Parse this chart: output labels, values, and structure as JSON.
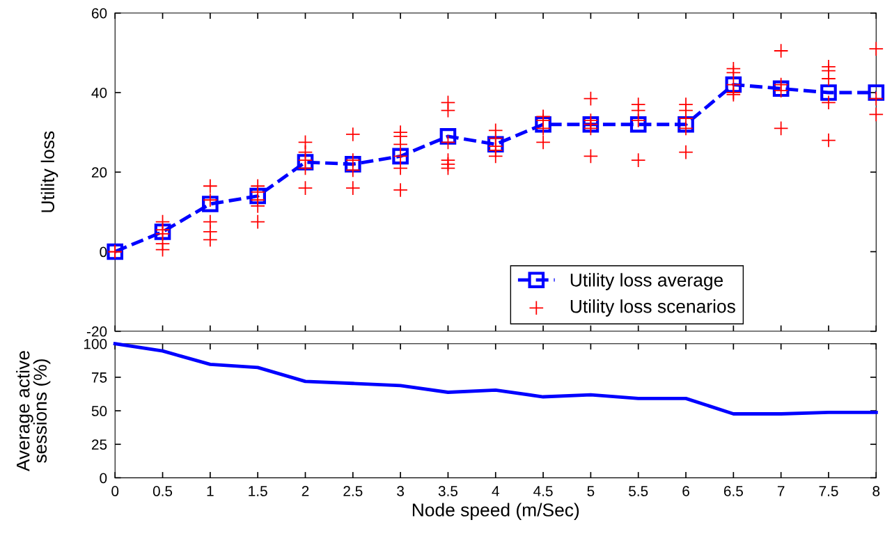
{
  "chart_data": [
    {
      "type": "line",
      "ylabel": "Utility loss",
      "xlim": [
        0,
        8
      ],
      "xticks": [
        0,
        0.5,
        1,
        1.5,
        2,
        2.5,
        3,
        3.5,
        4,
        4.5,
        5,
        5.5,
        6,
        6.5,
        7,
        7.5,
        8
      ],
      "ylim": [
        -20,
        60
      ],
      "yticks": [
        -20,
        0,
        20,
        40,
        60
      ],
      "tick_labels": "y",
      "legend": "bottom right",
      "grid": false,
      "series": [
        {
          "name": "Utility loss average",
          "type": "line",
          "color": "#0000ff",
          "marker": "square",
          "line_style": "dashed",
          "x": [
            0,
            0.5,
            1,
            1.5,
            2,
            2.5,
            3,
            3.5,
            4,
            4.5,
            5,
            5.5,
            6,
            6.5,
            7,
            7.5,
            8
          ],
          "values": [
            0,
            5,
            12,
            14,
            22.5,
            22,
            24,
            29,
            27,
            32,
            32,
            32,
            32,
            42,
            41,
            40,
            40
          ]
        },
        {
          "name": "Utility loss scenarios",
          "type": "scatter",
          "color": "#ff0000",
          "marker": "cross",
          "x": [
            0,
            0,
            0.5,
            0.5,
            0.5,
            0.5,
            0.5,
            1,
            1,
            1,
            1,
            1,
            1.5,
            1.5,
            1.5,
            1.5,
            1.5,
            2,
            2,
            2,
            2,
            2,
            2.5,
            2.5,
            2.5,
            2.5,
            3,
            3,
            3,
            3,
            3,
            3,
            3.5,
            3.5,
            3.5,
            3.5,
            3.5,
            3.5,
            4,
            4,
            4,
            4,
            4,
            4.5,
            4.5,
            4.5,
            4.5,
            5,
            5,
            5,
            5,
            5,
            5.5,
            5.5,
            5.5,
            5.5,
            6,
            6,
            6,
            6,
            6,
            6.5,
            6.5,
            6.5,
            6.5,
            6.5,
            7,
            7,
            7,
            7,
            7.5,
            7.5,
            7.5,
            7.5,
            7.5,
            8,
            8,
            8
          ],
          "values": [
            0,
            0,
            7.5,
            5.5,
            4.5,
            2,
            0.5,
            16.5,
            13,
            7.5,
            5,
            3,
            16.5,
            15,
            13,
            11.5,
            7.5,
            27.5,
            25,
            23,
            21,
            16,
            29.5,
            23,
            20.5,
            16,
            30,
            29,
            27,
            24,
            21,
            15.5,
            37.5,
            35.5,
            27.5,
            23,
            22,
            21,
            30.5,
            28.5,
            26.5,
            25.5,
            24,
            34,
            33,
            31,
            27.5,
            38.5,
            33,
            32,
            31,
            24,
            37,
            35.5,
            33,
            23,
            37,
            35.5,
            33.5,
            31,
            25,
            46,
            45,
            42,
            40,
            39.5,
            50.5,
            42,
            40.5,
            31,
            46.5,
            45.5,
            43.5,
            37.5,
            28,
            51,
            38.5,
            34.5
          ]
        }
      ]
    },
    {
      "type": "line",
      "xlabel": "Node speed (m/Sec)",
      "ylabel": "Average active\nsessions (%)",
      "xlim": [
        0,
        8
      ],
      "xticks": [
        0,
        0.5,
        1,
        1.5,
        2,
        2.5,
        3,
        3.5,
        4,
        4.5,
        5,
        5.5,
        6,
        6.5,
        7,
        7.5,
        8
      ],
      "ylim": [
        0,
        100
      ],
      "yticks": [
        0,
        25,
        50,
        75,
        100
      ],
      "grid": false,
      "series": [
        {
          "color": "#0000ff",
          "line_style": "solid",
          "x": [
            0,
            0.5,
            1,
            1.5,
            2,
            2.5,
            3,
            3.5,
            4,
            4.5,
            5,
            5.5,
            6,
            6.5,
            7,
            7.5,
            8
          ],
          "values": [
            100,
            94.6,
            84.6,
            82.3,
            71.9,
            70.4,
            68.8,
            63.8,
            65.4,
            60.4,
            61.9,
            59.2,
            59.2,
            47.7,
            47.7,
            48.8,
            48.8
          ]
        }
      ]
    }
  ]
}
